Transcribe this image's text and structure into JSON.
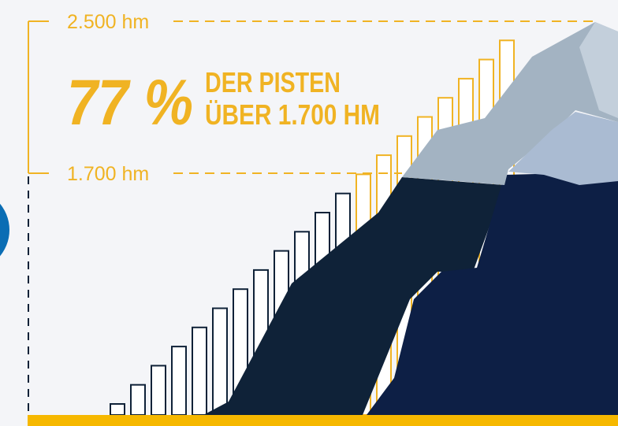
{
  "labels": {
    "top_altitude": "2.500 hm",
    "percentage": "77 %",
    "headline_line1": "DER PISTEN",
    "headline_line2": "ÜBER 1.700 HM",
    "bottom_altitude": "1.700 hm"
  }
}
